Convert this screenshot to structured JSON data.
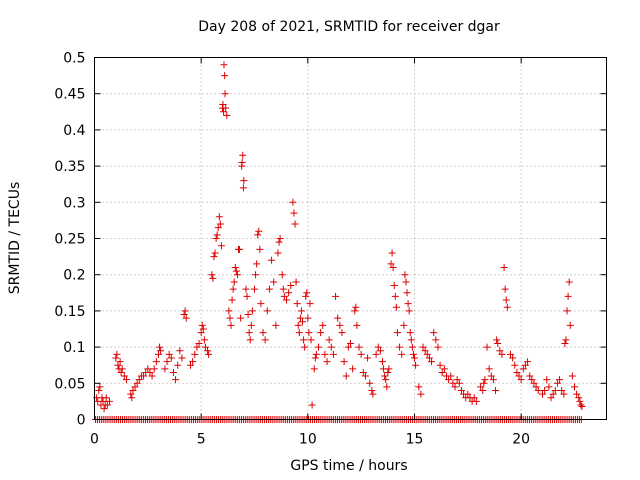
{
  "chart_data": {
    "type": "scatter",
    "title": "Day 208 of 2021, SRMTID for receiver dgar",
    "xlabel": "GPS time / hours",
    "ylabel": "SRMTID / TECUs",
    "xlim": [
      0,
      24
    ],
    "ylim": [
      0,
      0.5
    ],
    "x_ticks": [
      0,
      5,
      10,
      15,
      20
    ],
    "x_tick_labels": [
      "0",
      "5",
      "10",
      "15",
      "20"
    ],
    "y_ticks": [
      0,
      0.05,
      0.1,
      0.15,
      0.2,
      0.25,
      0.3,
      0.35,
      0.4,
      0.45,
      0.5
    ],
    "y_tick_labels": [
      "0",
      "0.05",
      "0.1",
      "0.15",
      "0.2",
      "0.25",
      "0.3",
      "0.35",
      "0.4",
      "0.45",
      "0.5"
    ],
    "grid": true,
    "marker": "plus",
    "color": "#dd0000",
    "zero_line": {
      "x_start": 0.05,
      "x_end": 22.9,
      "step": 0.09,
      "value": 0
    },
    "series": [
      {
        "name": "SRMTID",
        "points": [
          [
            0.1,
            0.03
          ],
          [
            0.15,
            0.025
          ],
          [
            0.2,
            0.04
          ],
          [
            0.25,
            0.045
          ],
          [
            0.3,
            0.02
          ],
          [
            0.35,
            0.03
          ],
          [
            0.4,
            0.025
          ],
          [
            0.45,
            0.015
          ],
          [
            0.5,
            0.02
          ],
          [
            0.55,
            0.03
          ],
          [
            0.6,
            0.02
          ],
          [
            0.7,
            0.025
          ],
          [
            1.0,
            0.085
          ],
          [
            1.05,
            0.09
          ],
          [
            1.1,
            0.075
          ],
          [
            1.15,
            0.07
          ],
          [
            1.2,
            0.08
          ],
          [
            1.25,
            0.065
          ],
          [
            1.3,
            0.07
          ],
          [
            1.4,
            0.06
          ],
          [
            1.5,
            0.055
          ],
          [
            1.7,
            0.035
          ],
          [
            1.75,
            0.03
          ],
          [
            1.8,
            0.04
          ],
          [
            1.9,
            0.045
          ],
          [
            2.0,
            0.05
          ],
          [
            2.1,
            0.055
          ],
          [
            2.2,
            0.06
          ],
          [
            2.3,
            0.06
          ],
          [
            2.4,
            0.065
          ],
          [
            2.5,
            0.07
          ],
          [
            2.6,
            0.065
          ],
          [
            2.7,
            0.06
          ],
          [
            2.8,
            0.07
          ],
          [
            2.9,
            0.08
          ],
          [
            3.0,
            0.09
          ],
          [
            3.05,
            0.1
          ],
          [
            3.1,
            0.095
          ],
          [
            3.3,
            0.07
          ],
          [
            3.4,
            0.08
          ],
          [
            3.5,
            0.09
          ],
          [
            3.6,
            0.085
          ],
          [
            3.7,
            0.065
          ],
          [
            3.8,
            0.055
          ],
          [
            3.9,
            0.075
          ],
          [
            4.0,
            0.095
          ],
          [
            4.1,
            0.085
          ],
          [
            4.2,
            0.145
          ],
          [
            4.25,
            0.15
          ],
          [
            4.3,
            0.14
          ],
          [
            4.5,
            0.075
          ],
          [
            4.6,
            0.08
          ],
          [
            4.7,
            0.09
          ],
          [
            4.8,
            0.1
          ],
          [
            4.9,
            0.105
          ],
          [
            5.0,
            0.12
          ],
          [
            5.05,
            0.13
          ],
          [
            5.1,
            0.125
          ],
          [
            5.15,
            0.11
          ],
          [
            5.2,
            0.1
          ],
          [
            5.3,
            0.095
          ],
          [
            5.35,
            0.09
          ],
          [
            5.5,
            0.2
          ],
          [
            5.55,
            0.195
          ],
          [
            5.6,
            0.225
          ],
          [
            5.65,
            0.23
          ],
          [
            5.7,
            0.25
          ],
          [
            5.75,
            0.255
          ],
          [
            5.8,
            0.265
          ],
          [
            5.85,
            0.28
          ],
          [
            5.9,
            0.27
          ],
          [
            5.95,
            0.24
          ],
          [
            6.0,
            0.43
          ],
          [
            6.02,
            0.435
          ],
          [
            6.05,
            0.425
          ],
          [
            6.07,
            0.49
          ],
          [
            6.1,
            0.475
          ],
          [
            6.12,
            0.45
          ],
          [
            6.15,
            0.43
          ],
          [
            6.2,
            0.42
          ],
          [
            6.3,
            0.15
          ],
          [
            6.35,
            0.14
          ],
          [
            6.4,
            0.13
          ],
          [
            6.45,
            0.165
          ],
          [
            6.5,
            0.18
          ],
          [
            6.55,
            0.19
          ],
          [
            6.6,
            0.21
          ],
          [
            6.65,
            0.205
          ],
          [
            6.7,
            0.2
          ],
          [
            6.75,
            0.235
          ],
          [
            6.8,
            0.235
          ],
          [
            6.85,
            0.14
          ],
          [
            6.9,
            0.35
          ],
          [
            6.92,
            0.355
          ],
          [
            6.95,
            0.365
          ],
          [
            6.98,
            0.32
          ],
          [
            7.0,
            0.33
          ],
          [
            7.1,
            0.18
          ],
          [
            7.15,
            0.17
          ],
          [
            7.2,
            0.145
          ],
          [
            7.25,
            0.12
          ],
          [
            7.3,
            0.11
          ],
          [
            7.35,
            0.13
          ],
          [
            7.4,
            0.15
          ],
          [
            7.5,
            0.18
          ],
          [
            7.55,
            0.2
          ],
          [
            7.6,
            0.215
          ],
          [
            7.65,
            0.255
          ],
          [
            7.7,
            0.26
          ],
          [
            7.75,
            0.235
          ],
          [
            7.8,
            0.16
          ],
          [
            7.9,
            0.12
          ],
          [
            8.0,
            0.11
          ],
          [
            8.1,
            0.15
          ],
          [
            8.2,
            0.18
          ],
          [
            8.3,
            0.22
          ],
          [
            8.4,
            0.19
          ],
          [
            8.5,
            0.13
          ],
          [
            8.6,
            0.23
          ],
          [
            8.65,
            0.245
          ],
          [
            8.7,
            0.25
          ],
          [
            8.8,
            0.2
          ],
          [
            8.85,
            0.18
          ],
          [
            8.9,
            0.17
          ],
          [
            9.0,
            0.165
          ],
          [
            9.1,
            0.175
          ],
          [
            9.2,
            0.185
          ],
          [
            9.3,
            0.3
          ],
          [
            9.35,
            0.285
          ],
          [
            9.4,
            0.27
          ],
          [
            9.45,
            0.19
          ],
          [
            9.5,
            0.16
          ],
          [
            9.55,
            0.13
          ],
          [
            9.6,
            0.12
          ],
          [
            9.65,
            0.14
          ],
          [
            9.7,
            0.15
          ],
          [
            9.75,
            0.135
          ],
          [
            9.8,
            0.11
          ],
          [
            9.85,
            0.1
          ],
          [
            9.9,
            0.17
          ],
          [
            9.95,
            0.175
          ],
          [
            10.0,
            0.14
          ],
          [
            10.05,
            0.12
          ],
          [
            10.1,
            0.16
          ],
          [
            10.15,
            0.11
          ],
          [
            10.2,
            0.02
          ],
          [
            10.3,
            0.07
          ],
          [
            10.35,
            0.085
          ],
          [
            10.4,
            0.09
          ],
          [
            10.5,
            0.1
          ],
          [
            10.6,
            0.12
          ],
          [
            10.7,
            0.13
          ],
          [
            10.8,
            0.09
          ],
          [
            10.9,
            0.08
          ],
          [
            11.0,
            0.11
          ],
          [
            11.1,
            0.1
          ],
          [
            11.2,
            0.09
          ],
          [
            11.3,
            0.17
          ],
          [
            11.4,
            0.14
          ],
          [
            11.5,
            0.13
          ],
          [
            11.6,
            0.12
          ],
          [
            11.7,
            0.08
          ],
          [
            11.8,
            0.06
          ],
          [
            11.9,
            0.1
          ],
          [
            12.0,
            0.105
          ],
          [
            12.1,
            0.07
          ],
          [
            12.2,
            0.15
          ],
          [
            12.25,
            0.155
          ],
          [
            12.3,
            0.13
          ],
          [
            12.4,
            0.1
          ],
          [
            12.5,
            0.09
          ],
          [
            12.6,
            0.065
          ],
          [
            12.7,
            0.06
          ],
          [
            12.8,
            0.085
          ],
          [
            12.9,
            0.05
          ],
          [
            13.0,
            0.04
          ],
          [
            13.05,
            0.035
          ],
          [
            13.2,
            0.09
          ],
          [
            13.3,
            0.1
          ],
          [
            13.4,
            0.095
          ],
          [
            13.5,
            0.08
          ],
          [
            13.55,
            0.07
          ],
          [
            13.6,
            0.06
          ],
          [
            13.65,
            0.055
          ],
          [
            13.7,
            0.045
          ],
          [
            13.75,
            0.065
          ],
          [
            13.8,
            0.07
          ],
          [
            13.9,
            0.215
          ],
          [
            13.95,
            0.23
          ],
          [
            14.0,
            0.21
          ],
          [
            14.05,
            0.185
          ],
          [
            14.1,
            0.17
          ],
          [
            14.15,
            0.155
          ],
          [
            14.2,
            0.12
          ],
          [
            14.3,
            0.1
          ],
          [
            14.4,
            0.09
          ],
          [
            14.5,
            0.13
          ],
          [
            14.55,
            0.2
          ],
          [
            14.6,
            0.19
          ],
          [
            14.65,
            0.175
          ],
          [
            14.7,
            0.16
          ],
          [
            14.75,
            0.15
          ],
          [
            14.8,
            0.12
          ],
          [
            14.85,
            0.11
          ],
          [
            14.9,
            0.1
          ],
          [
            14.95,
            0.09
          ],
          [
            15.0,
            0.085
          ],
          [
            15.05,
            0.075
          ],
          [
            15.2,
            0.045
          ],
          [
            15.3,
            0.035
          ],
          [
            15.4,
            0.1
          ],
          [
            15.5,
            0.095
          ],
          [
            15.6,
            0.09
          ],
          [
            15.7,
            0.085
          ],
          [
            15.8,
            0.08
          ],
          [
            15.9,
            0.12
          ],
          [
            16.0,
            0.11
          ],
          [
            16.1,
            0.1
          ],
          [
            16.2,
            0.075
          ],
          [
            16.3,
            0.065
          ],
          [
            16.4,
            0.07
          ],
          [
            16.5,
            0.06
          ],
          [
            16.6,
            0.055
          ],
          [
            16.7,
            0.06
          ],
          [
            16.8,
            0.05
          ],
          [
            16.9,
            0.045
          ],
          [
            17.0,
            0.055
          ],
          [
            17.1,
            0.05
          ],
          [
            17.2,
            0.04
          ],
          [
            17.3,
            0.035
          ],
          [
            17.4,
            0.03
          ],
          [
            17.5,
            0.035
          ],
          [
            17.6,
            0.03
          ],
          [
            17.7,
            0.025
          ],
          [
            17.8,
            0.03
          ],
          [
            17.9,
            0.025
          ],
          [
            18.1,
            0.045
          ],
          [
            18.2,
            0.04
          ],
          [
            18.25,
            0.05
          ],
          [
            18.3,
            0.055
          ],
          [
            18.4,
            0.1
          ],
          [
            18.5,
            0.07
          ],
          [
            18.6,
            0.06
          ],
          [
            18.7,
            0.055
          ],
          [
            18.8,
            0.04
          ],
          [
            18.85,
            0.11
          ],
          [
            18.9,
            0.105
          ],
          [
            19.0,
            0.095
          ],
          [
            19.1,
            0.09
          ],
          [
            19.2,
            0.21
          ],
          [
            19.25,
            0.18
          ],
          [
            19.3,
            0.165
          ],
          [
            19.35,
            0.155
          ],
          [
            19.5,
            0.09
          ],
          [
            19.6,
            0.085
          ],
          [
            19.7,
            0.075
          ],
          [
            19.8,
            0.065
          ],
          [
            19.9,
            0.06
          ],
          [
            20.0,
            0.055
          ],
          [
            20.1,
            0.07
          ],
          [
            20.2,
            0.075
          ],
          [
            20.3,
            0.08
          ],
          [
            20.4,
            0.06
          ],
          [
            20.5,
            0.055
          ],
          [
            20.6,
            0.05
          ],
          [
            20.7,
            0.045
          ],
          [
            20.8,
            0.04
          ],
          [
            21.0,
            0.035
          ],
          [
            21.1,
            0.04
          ],
          [
            21.2,
            0.055
          ],
          [
            21.3,
            0.045
          ],
          [
            21.4,
            0.03
          ],
          [
            21.5,
            0.035
          ],
          [
            21.6,
            0.04
          ],
          [
            21.7,
            0.05
          ],
          [
            21.8,
            0.055
          ],
          [
            21.9,
            0.04
          ],
          [
            22.0,
            0.035
          ],
          [
            22.05,
            0.105
          ],
          [
            22.1,
            0.11
          ],
          [
            22.15,
            0.15
          ],
          [
            22.2,
            0.17
          ],
          [
            22.25,
            0.19
          ],
          [
            22.3,
            0.13
          ],
          [
            22.4,
            0.06
          ],
          [
            22.5,
            0.045
          ],
          [
            22.6,
            0.035
          ],
          [
            22.7,
            0.03
          ],
          [
            22.75,
            0.025
          ],
          [
            22.8,
            0.02
          ],
          [
            22.85,
            0.018
          ]
        ]
      }
    ]
  }
}
